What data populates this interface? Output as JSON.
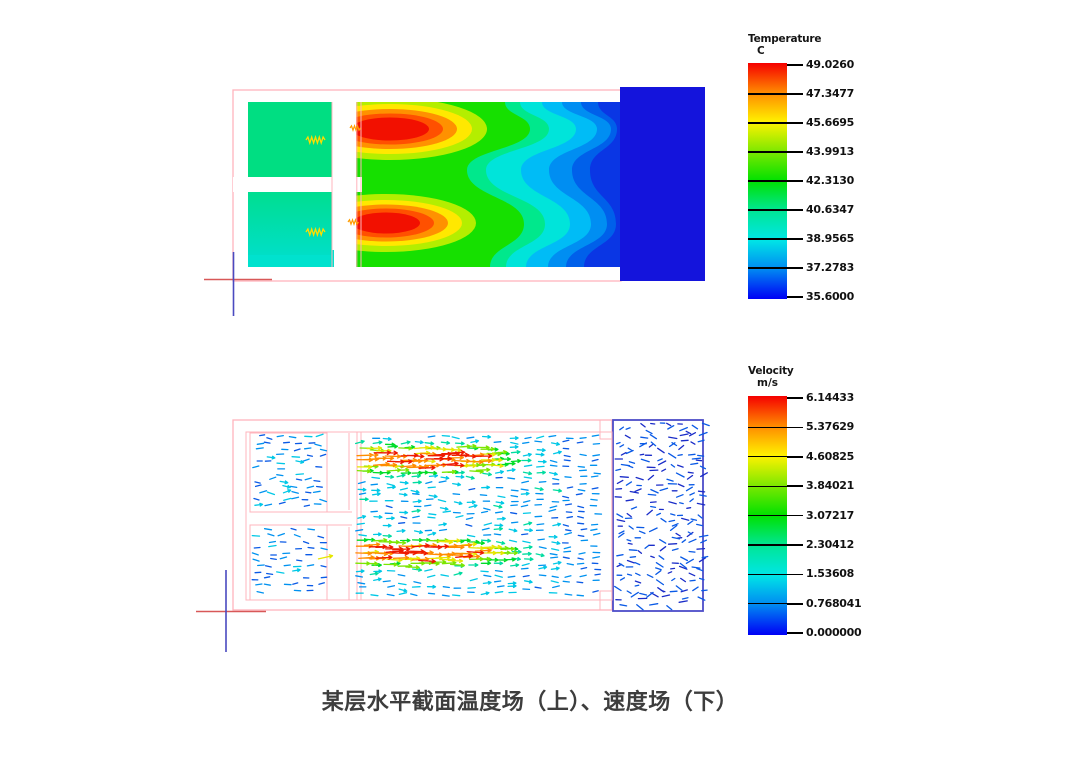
{
  "caption": "某层水平截面温度场（上）、速度场（下）",
  "legends": {
    "temperature": {
      "title": "Temperature",
      "unit": "C",
      "ticks": [
        "49.0260",
        "47.3477",
        "45.6695",
        "43.9913",
        "42.3130",
        "40.6347",
        "38.9565",
        "37.2783",
        "35.6000"
      ]
    },
    "velocity": {
      "title": "Velocity",
      "unit": "m/s",
      "ticks": [
        "6.14433",
        "5.37629",
        "4.60825",
        "3.84021",
        "3.07217",
        "2.30412",
        "1.53608",
        "0.768041",
        "0.000000"
      ]
    }
  },
  "chart_data": [
    {
      "type": "heatmap",
      "name": "temperature-contour-field",
      "title": "Horizontal section temperature field (top plot)",
      "field": "Temperature",
      "unit": "C",
      "range": [
        35.6,
        49.026
      ],
      "legend_ticks": [
        49.026,
        47.3477,
        45.6695,
        43.9913,
        42.313,
        40.6347,
        38.9565,
        37.2783,
        35.6
      ],
      "colormap": "rainbow-red-to-blue",
      "legend_position": "right",
      "readings": [
        {
          "region": "two left supply rooms",
          "approx_value_c": 39.5
        },
        {
          "region": "two jet cores right of wall openings",
          "approx_value_c": 49.0
        },
        {
          "region": "mid-hall downstream of jets",
          "approx_value_c": 38.0
        },
        {
          "region": "far-right exhaust zone (solid dark blue block)",
          "approx_value_c": 35.6
        }
      ]
    },
    {
      "type": "vector-field",
      "name": "velocity-vector-field",
      "title": "Horizontal section velocity field (bottom plot)",
      "field": "Velocity",
      "unit": "m/s",
      "range": [
        0.0,
        6.14433
      ],
      "legend_ticks": [
        6.14433,
        5.37629,
        4.60825,
        3.84021,
        3.07217,
        2.30412,
        1.53608,
        0.768041,
        0.0
      ],
      "colormap": "rainbow-red-to-blue",
      "legend_position": "right",
      "readings": [
        {
          "region": "two horizontal jet cores right of wall openings",
          "approx_value_ms": 6.0
        },
        {
          "region": "left rooms recirculation",
          "approx_value_ms": 1.2
        },
        {
          "region": "mid-hall ambient flow",
          "approx_value_ms": 1.8
        },
        {
          "region": "right outlined zone",
          "approx_value_ms": 0.4
        }
      ]
    }
  ],
  "colors": {
    "rainbow_stops": [
      "#F50000",
      "#FF8A00",
      "#FFF200",
      "#7DE800",
      "#00E100",
      "#00E695",
      "#00E6E6",
      "#0088F2",
      "#0000F5"
    ],
    "boundary_pink": "#FFB4BC",
    "right_box_fill_blue": "#1414DC",
    "right_box_stroke_blue": "#4C4CC8",
    "room_green_top": "#00DE82",
    "room_green_bottom": "#00DE90",
    "room_green_bottom_fade": "#00DFC6",
    "cyan_floor_strip": "#00E2CE",
    "band_base_blue": "#0A36E4",
    "bands": [
      "#0060EA",
      "#008EF2",
      "#00BCF6",
      "#00E4DA",
      "#00E88C",
      "#16E000"
    ],
    "jet_rings": [
      "#B4EE00",
      "#FFE800",
      "#FF9100",
      "#FF5000",
      "#F21000"
    ],
    "spring_symbol_yellow": "#FFDC00",
    "spring_symbol_orange": "#FF9C00",
    "axis_red": "#D85858",
    "axis_blue": "#4A4AC0",
    "vector_buckets": [
      "#1A2CC8",
      "#0A5AE6",
      "#0092F0",
      "#00C8E6",
      "#00DCA0",
      "#00DC28",
      "#7CE600",
      "#E6E600",
      "#FF8C00",
      "#EE1A00"
    ]
  },
  "vector_seed": 12
}
